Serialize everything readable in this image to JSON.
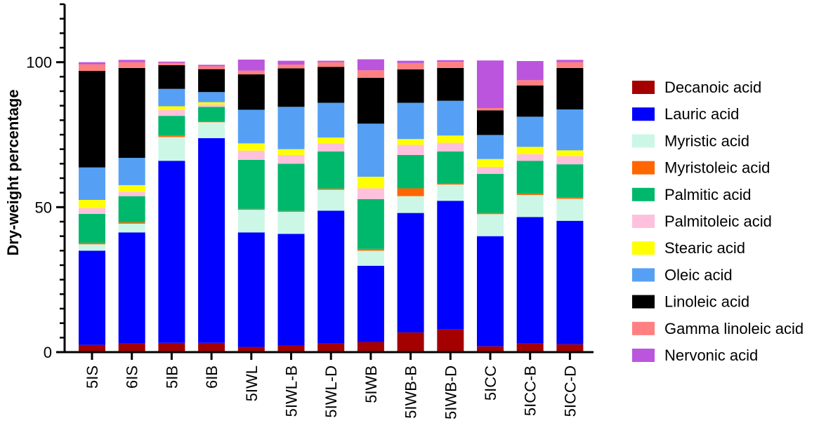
{
  "chart_data": {
    "type": "bar",
    "stacked": true,
    "title": "",
    "xlabel": "",
    "ylabel": "Dry-weight percentage",
    "ylim": [
      0,
      120
    ],
    "yticks": [
      0,
      50,
      100
    ],
    "grid": false,
    "legend_position": "right",
    "categories": [
      "5IS",
      "6IS",
      "5IB",
      "6IB",
      "5IWL",
      "5IWL-B",
      "5IWL-D",
      "5IWB",
      "5IWB-B",
      "5IWB-D",
      "5ICC",
      "5ICC-B",
      "5ICC-D"
    ],
    "series": [
      {
        "name": "Decanoic acid",
        "color": "#a50000",
        "values": [
          2.5,
          3.0,
          3.2,
          3.2,
          1.8,
          2.2,
          3.0,
          3.5,
          6.8,
          7.8,
          2.0,
          3.0,
          2.7
        ]
      },
      {
        "name": "Lauric acid",
        "color": "#0000ff",
        "values": [
          32.5,
          38.3,
          62.8,
          70.6,
          39.5,
          38.6,
          45.8,
          26.3,
          41.2,
          44.4,
          38.0,
          43.6,
          42.6
        ]
      },
      {
        "name": "Myristic acid",
        "color": "#ccf7e6",
        "values": [
          2.2,
          3.0,
          8.2,
          5.5,
          7.8,
          7.6,
          7.2,
          5.2,
          5.8,
          5.6,
          7.6,
          7.6,
          7.6
        ]
      },
      {
        "name": "Myristoleic acid",
        "color": "#ff6600",
        "values": [
          0.5,
          0.5,
          0.5,
          0.3,
          0.3,
          0.3,
          0.4,
          0.6,
          2.7,
          0.4,
          0.4,
          0.4,
          0.4
        ]
      },
      {
        "name": "Palmitic acid",
        "color": "#00b86b",
        "values": [
          10.0,
          9.0,
          6.8,
          5.0,
          16.9,
          16.3,
          12.8,
          17.2,
          11.5,
          11.0,
          13.5,
          11.4,
          11.5
        ]
      },
      {
        "name": "Palmitoleic acid",
        "color": "#ffc0dd",
        "values": [
          2.0,
          1.5,
          2.0,
          0.8,
          3.2,
          3.0,
          2.8,
          3.7,
          3.5,
          3.0,
          2.4,
          2.3,
          2.8
        ]
      },
      {
        "name": "Stearic acid",
        "color": "#ffff00",
        "values": [
          2.8,
          2.3,
          1.3,
          0.8,
          2.5,
          2.0,
          2.0,
          4.0,
          2.0,
          2.5,
          2.7,
          2.5,
          2.0
        ]
      },
      {
        "name": "Oleic acid",
        "color": "#55a0f5",
        "values": [
          11.2,
          9.4,
          6.0,
          3.5,
          11.6,
          14.6,
          12.0,
          18.3,
          12.5,
          12.0,
          8.3,
          10.4,
          14.1
        ]
      },
      {
        "name": "Linoleic acid",
        "color": "#000000",
        "values": [
          33.3,
          31.0,
          8.2,
          7.9,
          12.2,
          13.3,
          12.4,
          15.8,
          11.5,
          11.3,
          8.5,
          10.8,
          14.3
        ]
      },
      {
        "name": "Gamma linoleic acid",
        "color": "#ff8080",
        "values": [
          2.3,
          2.0,
          0.8,
          1.0,
          1.3,
          1.3,
          1.6,
          2.6,
          2.2,
          2.1,
          0.8,
          1.8,
          2.0
        ]
      },
      {
        "name": "Nervonic acid",
        "color": "#bb55dd",
        "values": [
          0.7,
          0.8,
          0.4,
          0.5,
          3.8,
          1.3,
          0.5,
          3.8,
          0.8,
          0.6,
          16.4,
          6.6,
          0.8
        ]
      }
    ]
  }
}
